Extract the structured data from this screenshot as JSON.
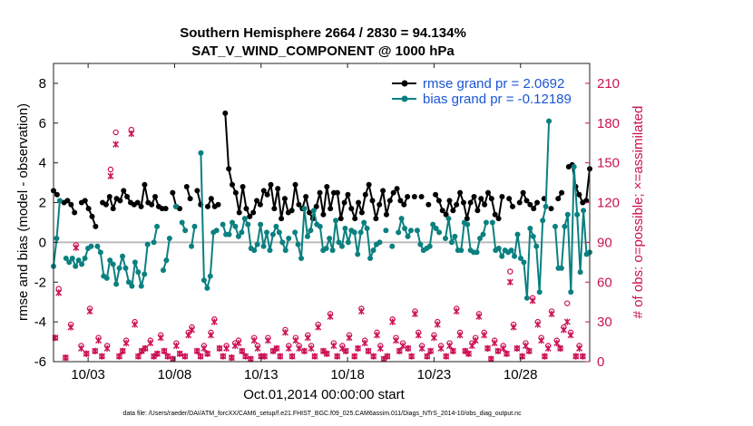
{
  "chart_data": {
    "type": "line",
    "title": "Southern Hemisphere 2664 / 2830 = 94.134%",
    "subtitle": "SAT_V_WIND_COMPONENT @ 1000 hPa",
    "xlabel": "Oct.01,2014 00:00:00 start",
    "ylabel_left": "rmse and bias (model - observation)",
    "ylabel_right": "# of obs: o=possible; ×=assimilated",
    "footer": "data file: /Users/raeder/DAI/ATM_forcXX/CAM6_setup/f.e21.FHIST_BGC.f09_025.CAM6assim.011/Diags_NTrS_2014-10/obs_diag_output.nc",
    "xlim": [
      1,
      32
    ],
    "ylim_left": [
      -6,
      9
    ],
    "ylim_right": [
      0,
      225
    ],
    "x_ticks": [
      3,
      8,
      13,
      18,
      23,
      28
    ],
    "x_tick_labels": [
      "10/03",
      "10/08",
      "10/13",
      "10/18",
      "10/23",
      "10/28"
    ],
    "y_left_ticks": [
      -6,
      -4,
      -2,
      0,
      2,
      4,
      6,
      8
    ],
    "y_right_ticks": [
      0,
      30,
      60,
      90,
      120,
      150,
      180,
      210
    ],
    "grid": false,
    "zero_line": 0,
    "legend_position": "top-right",
    "colors": {
      "rmse": "#000000",
      "bias": "#0b8080",
      "obs": "#cc1155",
      "axis_right": "#cc1155",
      "legend_text": "#1a55d6",
      "zero_line": "#bbbbbb"
    },
    "series": [
      {
        "name": "rmse grand pr = 2.0692",
        "axis": "left",
        "values": [
          2.6,
          2.4,
          null,
          2.0,
          2.1,
          1.9,
          1.5,
          null,
          2.0,
          2.1,
          1.7,
          1.3,
          0.8,
          null,
          2.0,
          1.9,
          2.3,
          1.7,
          2.2,
          2.1,
          2.6,
          2.3,
          2.0,
          1.9,
          2.0,
          1.8,
          2.9,
          2.0,
          1.9,
          2.3,
          1.8,
          1.7,
          1.7,
          null,
          2.5,
          1.8,
          1.7,
          null,
          2.8,
          2.2,
          null,
          2.6,
          1.9,
          null,
          1.8,
          2.2,
          1.8,
          1.9,
          null,
          6.5,
          3.7,
          2.9,
          2.5,
          1.5,
          2.8,
          1.7,
          1.3,
          1.5,
          2.1,
          1.9,
          2.6,
          2.4,
          2.9,
          1.7,
          2.7,
          1.2,
          2.2,
          1.5,
          1.6,
          2.9,
          1.9,
          1.7,
          2.3,
          1.5,
          1.2,
          1.8,
          2.5,
          1.4,
          2.8,
          1.7,
          2.5,
          2.5,
          1.2,
          2.0,
          2.4,
          1.7,
          1.2,
          2.0,
          1.5,
          2.4,
          2.9,
          2.1,
          1.2,
          1.9,
          2.6,
          1.4,
          2.1,
          2.5,
          2.7,
          2.1,
          1.9,
          2.3,
          null,
          2.3,
          null,
          2.3,
          null,
          1.9,
          null,
          2.4,
          2.1,
          1.6,
          1.4,
          2.1,
          1.6,
          1.9,
          2.5,
          2.0,
          1.2,
          2.0,
          2.3,
          1.6,
          2.2,
          1.9,
          2.5,
          2.2,
          1.4,
          1.2,
          2.3,
          null,
          2.2,
          1.8,
          null,
          2.0,
          2.5,
          2.1,
          1.9,
          1.7,
          2.0,
          null,
          2.2,
          null,
          1.7,
          null,
          2.2,
          2.5,
          null,
          3.8,
          3.9,
          2.8,
          2.4,
          2.0,
          2.1,
          3.7
        ]
      },
      {
        "name": "bias grand pr = -0.12189",
        "axis": "left",
        "values": [
          -1.2,
          0.2,
          2.1,
          null,
          -0.8,
          -1.0,
          -0.8,
          -1.2,
          -0.9,
          -1.1,
          -0.8,
          -0.3,
          -0.2,
          null,
          -0.2,
          -0.5,
          -1.7,
          -1.8,
          -0.9,
          -1.1,
          -2.1,
          -1.3,
          -0.7,
          -1.3,
          -2.0,
          -2.2,
          -1.0,
          -1.5,
          -2.2,
          -1.6,
          -0.1,
          null,
          0.0,
          0.8,
          null,
          -1.4,
          -0.9,
          0.2,
          null,
          1.8,
          null,
          1.0,
          0.6,
          null,
          -0.2,
          0.8,
          null,
          4.5,
          -1.9,
          -2.3,
          -1.7,
          0.5,
          0.6,
          null,
          0.9,
          0.4,
          0.4,
          1.0,
          0.8,
          0.3,
          0.5,
          1.2,
          0.9,
          -0.3,
          -0.4,
          -0.1,
          0.9,
          -0.2,
          0.5,
          -0.4,
          0.4,
          0.8,
          0.5,
          0.0,
          -0.4,
          0.2,
          null,
          0.5,
          -0.1,
          -0.8,
          1.7,
          0.3,
          0.6,
          1.6,
          0.9,
          0.8,
          -0.4,
          -0.3,
          0.2,
          -0.4,
          1.1,
          0.0,
          -0.2,
          0.7,
          0.0,
          0.6,
          0.5,
          -0.6,
          0.5,
          1.0,
          0.7,
          -0.8,
          -0.4,
          -0.1,
          0.0,
          null,
          0.6,
          null,
          -0.2,
          null,
          0.5,
          1.2,
          0.7,
          0.3,
          0.6,
          null,
          0.6,
          -0.1,
          -0.4,
          -0.3,
          -0.2,
          0.9,
          0.7,
          0.5,
          null,
          0.2,
          1.2,
          0.0,
          0.3,
          -0.4,
          -0.4,
          1.0,
          0.9,
          -0.4,
          -0.5,
          -0.5,
          0.2,
          0.4,
          1.0,
          null,
          1.0,
          -0.4,
          -0.3,
          -0.7,
          -0.4,
          -0.5,
          -0.4,
          -0.7,
          0.4,
          -0.8,
          -1.0,
          -2.8,
          0.7,
          0.3,
          -0.2,
          -2.5,
          1.1,
          1.8,
          6.1,
          null,
          0.8,
          -1.3,
          -1.3,
          0.8,
          1.4,
          -2.5,
          3.8,
          1.4,
          -1.5,
          1.6,
          -0.6,
          -0.5
        ]
      }
    ],
    "x_values_note": "series values are evenly spaced between xlim[0] and xlim[1]",
    "obs_possible": {
      "name": "possible",
      "marker": "circle",
      "axis": "right",
      "x": [
        1.1,
        1.3,
        1.7,
        2.0,
        2.3,
        2.6,
        2.9,
        3.1,
        3.4,
        3.6,
        3.8,
        4.1,
        4.3,
        4.6,
        4.8,
        5.0,
        5.2,
        5.5,
        5.7,
        5.9,
        6.1,
        6.3,
        6.6,
        6.8,
        7.0,
        7.2,
        7.4,
        7.6,
        7.9,
        8.1,
        8.3,
        8.6,
        8.8,
        9.0,
        9.3,
        9.5,
        9.7,
        9.9,
        10.1,
        10.3,
        10.6,
        10.8,
        11.0,
        11.3,
        11.5,
        11.7,
        11.9,
        12.1,
        12.4,
        12.6,
        12.8,
        13.0,
        13.2,
        13.4,
        13.7,
        13.9,
        14.1,
        14.4,
        14.6,
        14.8,
        15.0,
        15.2,
        15.5,
        15.7,
        15.9,
        16.1,
        16.3,
        16.6,
        16.8,
        17.0,
        17.2,
        17.4,
        17.7,
        17.9,
        18.1,
        18.4,
        18.6,
        18.8,
        19.0,
        19.2,
        19.5,
        19.7,
        19.9,
        20.1,
        20.3,
        20.6,
        20.8,
        21.0,
        21.2,
        21.5,
        21.7,
        21.9,
        22.1,
        22.3,
        22.6,
        22.8,
        23.0,
        23.2,
        23.4,
        23.7,
        23.9,
        24.1,
        24.3,
        24.5,
        24.8,
        25.0,
        25.2,
        25.4,
        25.6,
        25.9,
        26.1,
        26.3,
        26.5,
        26.7,
        27.0,
        27.2,
        27.4,
        27.6,
        27.8,
        28.1,
        28.3,
        28.5,
        28.7,
        29.0,
        29.2,
        29.4,
        29.6,
        29.8,
        30.1,
        30.3,
        30.5,
        30.7,
        30.9,
        31.2,
        31.4,
        31.6
      ],
      "y": [
        18,
        55,
        3,
        28,
        88,
        12,
        6,
        40,
        8,
        18,
        4,
        12,
        145,
        173,
        4,
        8,
        16,
        175,
        30,
        4,
        8,
        10,
        16,
        4,
        6,
        20,
        8,
        4,
        2,
        14,
        6,
        4,
        22,
        26,
        8,
        4,
        12,
        6,
        22,
        32,
        10,
        4,
        12,
        3,
        14,
        16,
        8,
        4,
        2,
        18,
        12,
        4,
        4,
        18,
        8,
        10,
        4,
        24,
        12,
        4,
        18,
        12,
        8,
        20,
        12,
        4,
        28,
        8,
        6,
        36,
        14,
        4,
        12,
        8,
        20,
        4,
        10,
        40,
        16,
        8,
        4,
        22,
        12,
        2,
        4,
        32,
        18,
        8,
        14,
        10,
        4,
        38,
        22,
        12,
        4,
        8,
        20,
        30,
        12,
        4,
        14,
        8,
        40,
        22,
        8,
        6,
        14,
        18,
        36,
        22,
        10,
        2,
        16,
        8,
        12,
        6,
        68,
        28,
        10,
        4,
        14,
        8,
        48,
        30,
        18,
        4,
        12,
        38,
        16,
        10,
        26,
        44,
        22,
        4,
        12,
        4
      ]
    },
    "obs_assimilated": {
      "name": "assimilated",
      "marker": "x",
      "axis": "right",
      "x": [
        1.1,
        1.3,
        1.7,
        2.0,
        2.3,
        2.6,
        2.9,
        3.1,
        3.4,
        3.6,
        3.8,
        4.1,
        4.3,
        4.6,
        4.8,
        5.0,
        5.2,
        5.5,
        5.7,
        5.9,
        6.1,
        6.3,
        6.6,
        6.8,
        7.0,
        7.2,
        7.4,
        7.6,
        7.9,
        8.1,
        8.3,
        8.6,
        8.8,
        9.0,
        9.3,
        9.5,
        9.7,
        9.9,
        10.1,
        10.3,
        10.6,
        10.8,
        11.0,
        11.3,
        11.5,
        11.7,
        11.9,
        12.1,
        12.4,
        12.6,
        12.8,
        13.0,
        13.2,
        13.4,
        13.7,
        13.9,
        14.1,
        14.4,
        14.6,
        14.8,
        15.0,
        15.2,
        15.5,
        15.7,
        15.9,
        16.1,
        16.3,
        16.6,
        16.8,
        17.0,
        17.2,
        17.4,
        17.7,
        17.9,
        18.1,
        18.4,
        18.6,
        18.8,
        19.0,
        19.2,
        19.5,
        19.7,
        19.9,
        20.1,
        20.3,
        20.6,
        20.8,
        21.0,
        21.2,
        21.5,
        21.7,
        21.9,
        22.1,
        22.3,
        22.6,
        22.8,
        23.0,
        23.2,
        23.4,
        23.7,
        23.9,
        24.1,
        24.3,
        24.5,
        24.8,
        25.0,
        25.2,
        25.4,
        25.6,
        25.9,
        26.1,
        26.3,
        26.5,
        26.7,
        27.0,
        27.2,
        27.4,
        27.6,
        27.8,
        28.1,
        28.3,
        28.5,
        28.7,
        29.0,
        29.2,
        29.4,
        29.6,
        29.8,
        30.1,
        30.3,
        30.5,
        30.7,
        30.9,
        31.2,
        31.4,
        31.6
      ],
      "y": [
        18,
        52,
        3,
        26,
        86,
        10,
        6,
        38,
        8,
        16,
        4,
        10,
        140,
        164,
        4,
        8,
        14,
        172,
        28,
        4,
        8,
        10,
        14,
        4,
        6,
        18,
        8,
        4,
        2,
        12,
        6,
        4,
        20,
        24,
        8,
        4,
        10,
        6,
        20,
        30,
        10,
        4,
        10,
        3,
        12,
        14,
        8,
        4,
        2,
        16,
        10,
        4,
        4,
        16,
        8,
        10,
        4,
        22,
        10,
        4,
        16,
        10,
        8,
        18,
        10,
        4,
        26,
        8,
        6,
        34,
        12,
        4,
        10,
        8,
        18,
        4,
        10,
        38,
        14,
        8,
        4,
        20,
        10,
        2,
        4,
        30,
        16,
        8,
        12,
        10,
        4,
        36,
        20,
        10,
        4,
        8,
        18,
        28,
        10,
        4,
        12,
        8,
        38,
        20,
        8,
        6,
        12,
        16,
        34,
        20,
        10,
        2,
        14,
        8,
        10,
        6,
        60,
        26,
        10,
        4,
        12,
        8,
        46,
        28,
        16,
        4,
        10,
        36,
        14,
        10,
        24,
        30,
        20,
        4,
        10,
        4
      ]
    }
  }
}
